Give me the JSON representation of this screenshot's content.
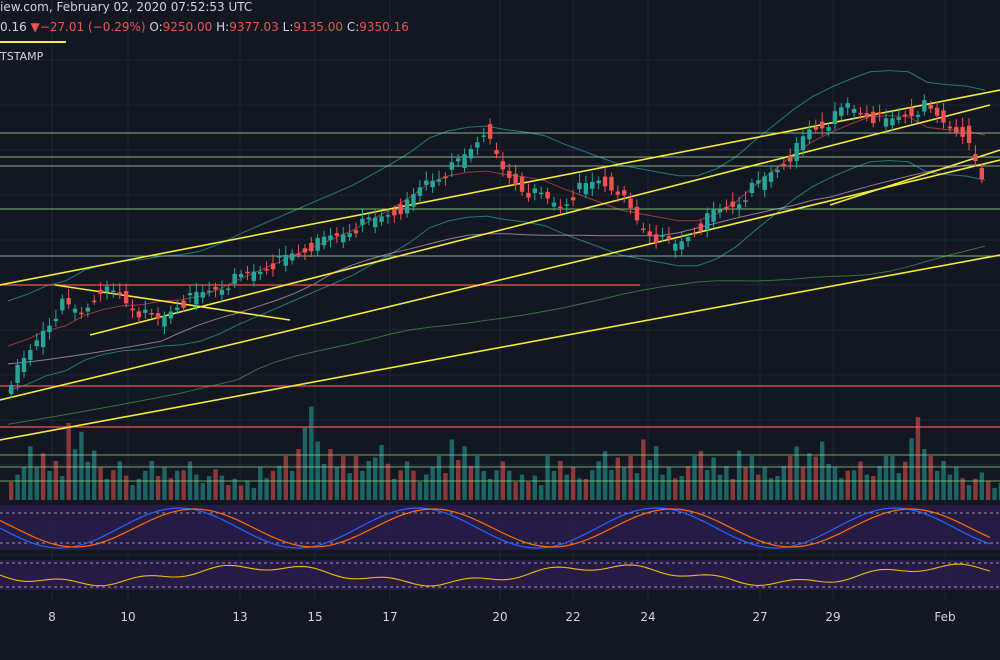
{
  "header": {
    "source_date": "iew.com, February 02, 2020 07:52:53 UTC",
    "change_prefix": "0.16",
    "change_arrow": "▼",
    "change_value": "−27.01 (−0.29%)",
    "o_label": "O:",
    "o_value": "9250.00",
    "h_label": "H:",
    "h_value": "9377.03",
    "l_label": "L:",
    "l_value": "9135.00",
    "c_label": "C:",
    "c_value": "9350.16",
    "exchange": "TSTAMP"
  },
  "colors": {
    "background": "#131722",
    "up": "#26a69a",
    "down": "#ef5350",
    "trendline": "#f2ea3c",
    "support": "#9be27d",
    "resistance": "#ef5350"
  },
  "chart_data": {
    "type": "candlestick",
    "title": "",
    "x_tick_labels": [
      "8",
      "10",
      "13",
      "15",
      "17",
      "20",
      "22",
      "24",
      "27",
      "29",
      "Feb"
    ],
    "indicators": [
      "Bollinger Bands",
      "Moving Averages",
      "Volume",
      "Stochastic RSI",
      "RSI"
    ],
    "grid": true,
    "note_values": "price path shown in chart-pixel-free data units (approx BTC/USD)",
    "price_path": [
      8100,
      8250,
      8450,
      8600,
      8550,
      8700,
      8650,
      8550,
      8500,
      8600,
      8650,
      8700,
      8750,
      8800,
      8850,
      8900,
      8950,
      9000,
      9050,
      9100,
      9150,
      9200,
      9350,
      9400,
      9500,
      9650,
      9400,
      9300,
      9250,
      9200,
      9300,
      9350,
      9300,
      9100,
      9000,
      8950,
      9050,
      9150,
      9200,
      9300,
      9400,
      9500,
      9650,
      9700,
      9800,
      9750,
      9700,
      9750,
      9800,
      9700,
      9650,
      9350
    ],
    "volume_path": [
      30,
      55,
      40,
      70,
      45,
      35,
      25,
      40,
      30,
      35,
      28,
      25,
      20,
      30,
      40,
      85,
      60,
      45,
      40,
      50,
      35,
      30,
      45,
      55,
      40,
      35,
      30,
      25,
      40,
      30,
      35,
      50,
      45,
      55,
      30,
      40,
      50,
      35,
      45,
      30,
      40,
      55,
      60,
      30,
      35,
      40,
      45,
      85,
      40,
      30,
      25,
      20
    ]
  }
}
